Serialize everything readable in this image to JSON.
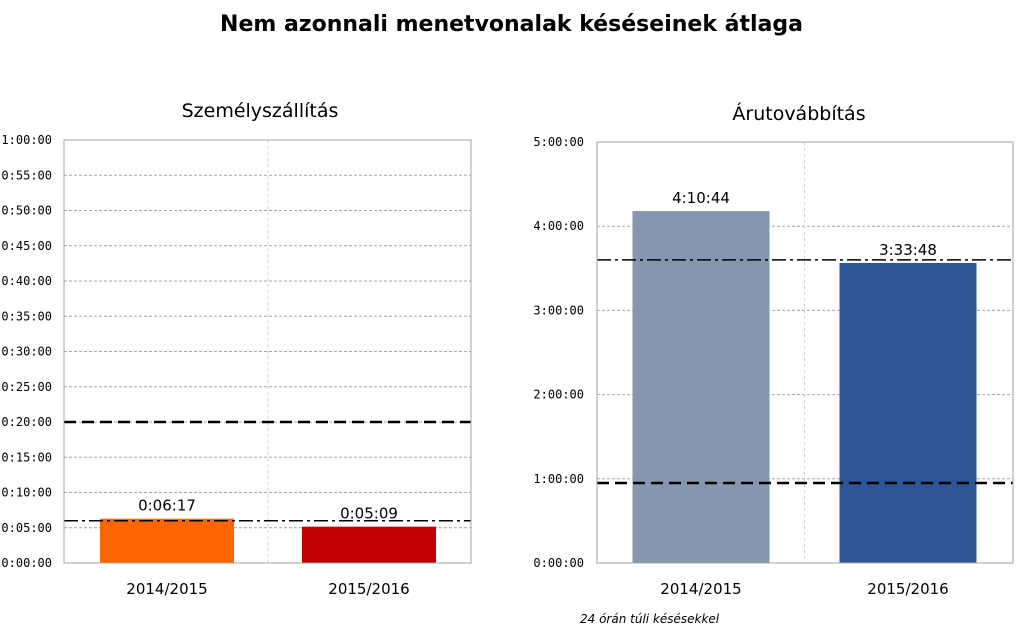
{
  "title": "Nem azonnali menetvonalak késéseinek átlaga",
  "footnote": "24 órán túli késésekkel",
  "chart_data": [
    {
      "type": "bar",
      "title": "Személyszállítás",
      "categories": [
        "2014/2015",
        "2015/2016"
      ],
      "values_seconds": [
        377,
        309
      ],
      "data_labels": [
        "0:06:17",
        "0:05:09"
      ],
      "colors": [
        "#ff6600",
        "#c00000"
      ],
      "ylim_seconds": [
        0,
        3600
      ],
      "tick_step_seconds": 300,
      "tick_labels": [
        "0:00:00",
        "0:05:00",
        "0:10:00",
        "0:15:00",
        "0:20:00",
        "0:25:00",
        "0:30:00",
        "0:35:00",
        "0:40:00",
        "0:45:00",
        "0:50:00",
        "0:55:00",
        "1:00:00"
      ],
      "reference_lines": [
        {
          "style": "dashed",
          "value_seconds": 1200
        },
        {
          "style": "dash-dot",
          "value_seconds": 360
        }
      ],
      "grid": true
    },
    {
      "type": "bar",
      "title": "Árutovábbítás",
      "categories": [
        "2014/2015",
        "2015/2016"
      ],
      "values_seconds": [
        15044,
        12828
      ],
      "data_labels": [
        "4:10:44",
        "3:33:48"
      ],
      "colors": [
        "#8497b0",
        "#2f5597"
      ],
      "ylim_seconds": [
        0,
        18000
      ],
      "tick_step_seconds": 3600,
      "tick_labels": [
        "0:00:00",
        "1:00:00",
        "2:00:00",
        "3:00:00",
        "4:00:00",
        "5:00:00"
      ],
      "reference_lines": [
        {
          "style": "dashed",
          "value_seconds": 3420
        },
        {
          "style": "dash-dot",
          "value_seconds": 12960
        }
      ],
      "grid": true
    }
  ]
}
